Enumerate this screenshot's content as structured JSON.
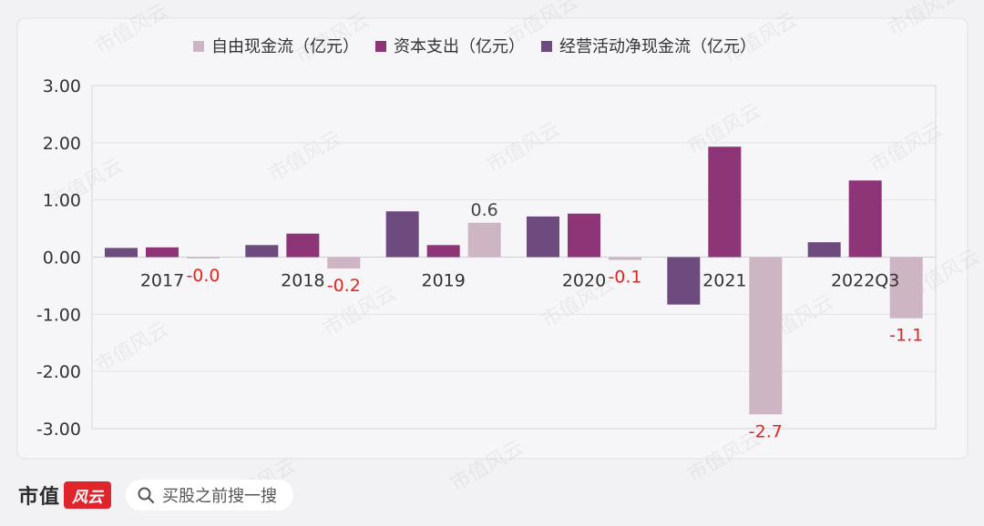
{
  "chart_data": {
    "type": "bar",
    "categories": [
      "2017",
      "2018",
      "2019",
      "2020",
      "2021",
      "2022Q3"
    ],
    "series": [
      {
        "name": "自由现金流（亿元）",
        "color": "#cdb5c3",
        "values": [
          -0.02,
          -0.2,
          0.6,
          -0.05,
          -2.75,
          -1.07
        ],
        "labels": [
          "-0.0",
          "-0.2",
          "0.6",
          "-0.1",
          "-2.7",
          "-1.1"
        ]
      },
      {
        "name": "资本支出（亿元）",
        "color": "#8d3576",
        "values": [
          0.17,
          0.41,
          0.21,
          0.76,
          1.93,
          1.34
        ]
      },
      {
        "name": "经营活动净现金流（亿元）",
        "color": "#6d4b7e",
        "values": [
          0.16,
          0.21,
          0.8,
          0.71,
          -0.83,
          0.26
        ]
      }
    ],
    "ylim": [
      -3,
      3
    ],
    "yticks": [
      "3.00",
      "2.00",
      "1.00",
      "0.00",
      "-1.00",
      "-2.00",
      "-3.00"
    ],
    "yticks_values": [
      3,
      2,
      1,
      0,
      -1,
      -2,
      -3
    ],
    "grid": true,
    "legend_position": "top",
    "negative_label_color": "#e8231c",
    "positive_label_color": "#444444"
  },
  "watermark": "市值风云",
  "footer": {
    "brand": "市值",
    "brand_logo_text": "风云",
    "search_placeholder": "买股之前搜一搜",
    "search_icon": "search-icon"
  }
}
